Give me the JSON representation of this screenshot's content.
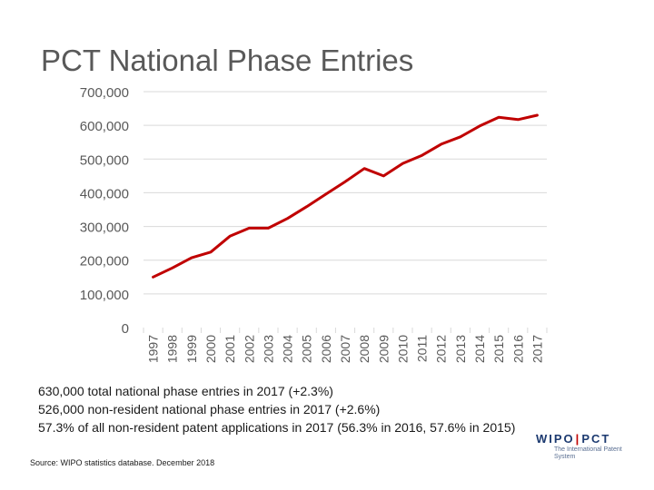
{
  "slide": {
    "title": "PCT National Phase Entries",
    "notes": [
      "630,000 total national phase entries in 2017 (+2.3%)",
      "526,000 non-resident national phase entries in 2017 (+2.6%)",
      "57.3% of all non-resident patent applications in 2017 (56.3% in 2016, 57.6% in 2015)"
    ],
    "source": "Source: WIPO statistics database. December 2018"
  },
  "logo": {
    "left": "WIPO",
    "right": "PCT",
    "subtitle": "The International Patent System"
  },
  "colors": {
    "line": "#c00000",
    "grid": "#d9d9d9",
    "axis_text": "#595959"
  },
  "chart_data": {
    "type": "line",
    "title": "PCT National Phase Entries",
    "xlabel": "",
    "ylabel": "",
    "grid": true,
    "legend": "none",
    "categories": [
      "1997",
      "1998",
      "1999",
      "2000",
      "2001",
      "2002",
      "2003",
      "2004",
      "2005",
      "2006",
      "2007",
      "2008",
      "2009",
      "2010",
      "2011",
      "2012",
      "2013",
      "2014",
      "2015",
      "2016",
      "2017"
    ],
    "y_ticks": [
      0,
      100000,
      200000,
      300000,
      400000,
      500000,
      600000,
      700000
    ],
    "y_tick_labels": [
      "0",
      "100,000",
      "200,000",
      "300,000",
      "400,000",
      "500,000",
      "600,000",
      "700,000"
    ],
    "ylim": [
      0,
      700000
    ],
    "series": [
      {
        "name": "National phase entries",
        "values": [
          150000,
          177000,
          207000,
          224000,
          271000,
          295000,
          295000,
          324000,
          359000,
          396000,
          433000,
          472000,
          450000,
          487000,
          511000,
          544000,
          566000,
          598000,
          624000,
          617000,
          630000
        ]
      }
    ]
  }
}
